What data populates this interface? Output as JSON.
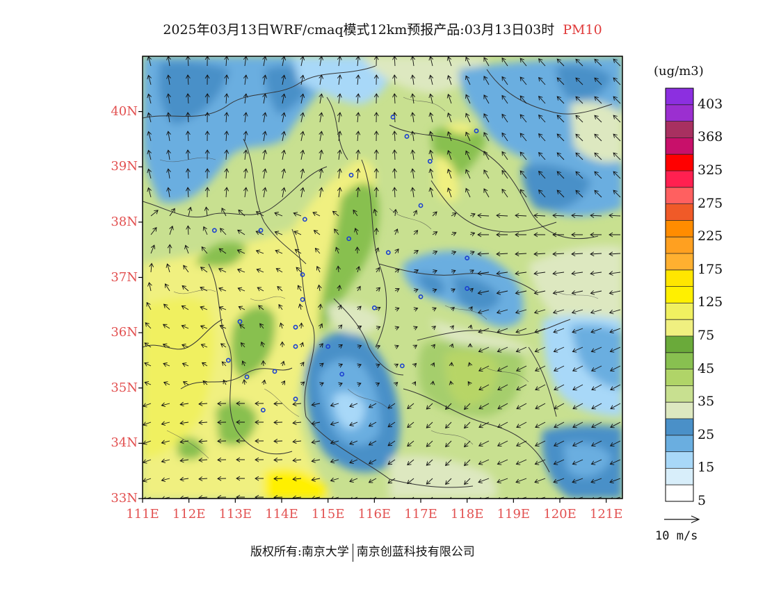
{
  "title": {
    "main": "2025年03月13日WRF/cmaq模式12km预报产品:03月13日03时",
    "pollutant": "PM10"
  },
  "axes": {
    "lat_labels": [
      "40N",
      "39N",
      "38N",
      "37N",
      "36N",
      "35N",
      "34N",
      "33N"
    ],
    "lat_values": [
      40,
      39,
      38,
      37,
      36,
      35,
      34,
      33
    ],
    "lon_labels": [
      "111E",
      "112E",
      "113E",
      "114E",
      "115E",
      "116E",
      "117E",
      "118E",
      "119E",
      "120E",
      "121E"
    ],
    "lon_values": [
      111,
      112,
      113,
      114,
      115,
      116,
      117,
      118,
      119,
      120,
      121
    ],
    "lon_range": [
      111,
      121.35
    ],
    "lat_range": [
      33,
      41
    ]
  },
  "colorbar": {
    "unit": "(ug/m3)",
    "labels": [
      "403",
      "368",
      "325",
      "275",
      "225",
      "175",
      "125",
      "75",
      "45",
      "35",
      "25",
      "15",
      "5"
    ],
    "colors": [
      "#8c2fe0",
      "#9b2fd0",
      "#a83060",
      "#c8106a",
      "#ff0000",
      "#ff2050",
      "#ff6060",
      "#f05a28",
      "#ff8c00",
      "#ffa020",
      "#ffb030",
      "#ffe600",
      "#fff000",
      "#f0f060",
      "#f0f080",
      "#6aaa3a",
      "#88c050",
      "#b0d468",
      "#c8e090",
      "#dde8c0",
      "#4a90c8",
      "#6aaee0",
      "#a8d8f8",
      "#d8eefa",
      "#ffffff"
    ]
  },
  "wind_reference": {
    "label": "10 m/s"
  },
  "stations": [
    [
      116.4,
      39.9
    ],
    [
      116.7,
      39.55
    ],
    [
      117.2,
      39.1
    ],
    [
      118.2,
      39.65
    ],
    [
      115.5,
      38.85
    ],
    [
      114.5,
      38.05
    ],
    [
      112.55,
      37.85
    ],
    [
      113.55,
      37.85
    ],
    [
      115.45,
      37.7
    ],
    [
      116.3,
      37.45
    ],
    [
      117.0,
      38.3
    ],
    [
      118.0,
      37.35
    ],
    [
      114.45,
      37.05
    ],
    [
      114.45,
      36.6
    ],
    [
      116.0,
      36.45
    ],
    [
      117.0,
      36.65
    ],
    [
      118.0,
      36.8
    ],
    [
      113.1,
      36.2
    ],
    [
      114.3,
      36.1
    ],
    [
      114.3,
      35.75
    ],
    [
      115.0,
      35.75
    ],
    [
      112.85,
      35.5
    ],
    [
      113.25,
      35.2
    ],
    [
      113.85,
      35.3
    ],
    [
      115.3,
      35.25
    ],
    [
      116.6,
      35.4
    ],
    [
      113.6,
      34.6
    ],
    [
      114.3,
      34.8
    ]
  ],
  "copyright": {
    "left": "版权所有:南京大学",
    "right": "南京创蓝科技有限公司"
  }
}
